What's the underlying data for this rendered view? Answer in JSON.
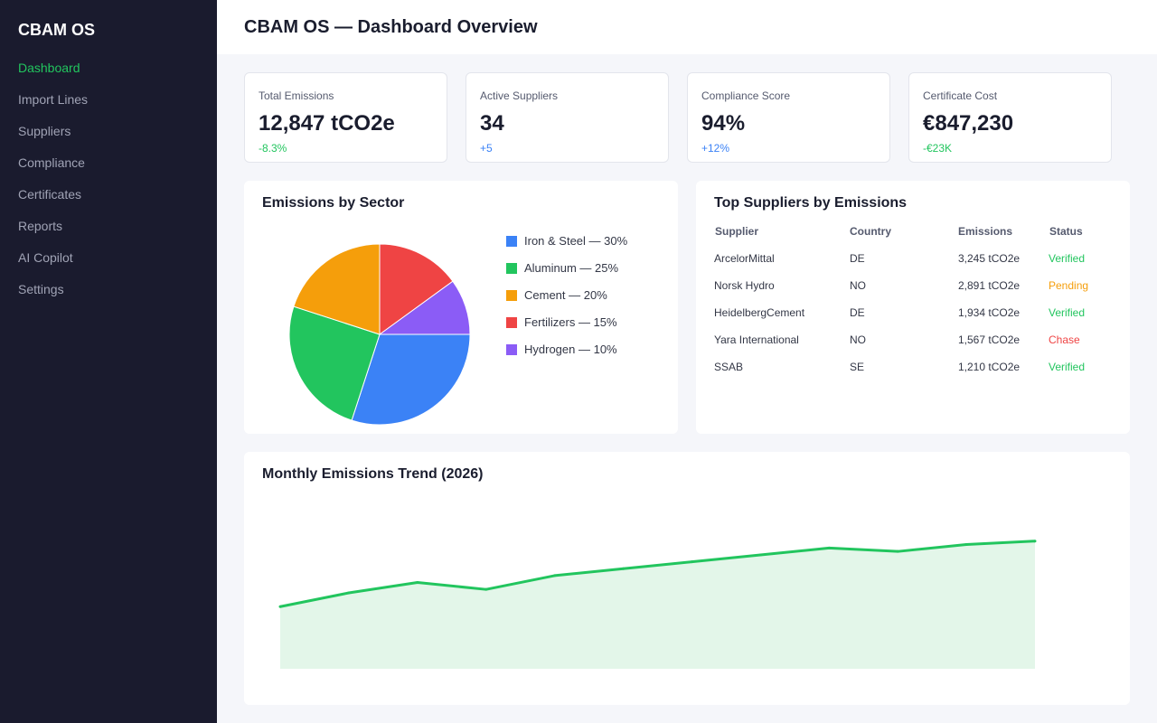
{
  "app": {
    "brand": "CBAM OS",
    "page_title": "CBAM OS — Dashboard Overview"
  },
  "sidebar": {
    "items": [
      {
        "label": "Dashboard",
        "active": true
      },
      {
        "label": "Import Lines",
        "active": false
      },
      {
        "label": "Suppliers",
        "active": false
      },
      {
        "label": "Compliance",
        "active": false
      },
      {
        "label": "Certificates",
        "active": false
      },
      {
        "label": "Reports",
        "active": false
      },
      {
        "label": "AI Copilot",
        "active": false
      },
      {
        "label": "Settings",
        "active": false
      }
    ]
  },
  "kpis": [
    {
      "label": "Total Emissions",
      "value": "12,847 tCO2e",
      "delta": "-8.3%",
      "delta_color": "#22c55e"
    },
    {
      "label": "Active Suppliers",
      "value": "34",
      "delta": "+5",
      "delta_color": "#3b82f6"
    },
    {
      "label": "Compliance Score",
      "value": "94%",
      "delta": "+12%",
      "delta_color": "#3b82f6"
    },
    {
      "label": "Certificate Cost",
      "value": "€847,230",
      "delta": "-€23K",
      "delta_color": "#22c55e"
    }
  ],
  "sector_card": {
    "title": "Emissions by Sector"
  },
  "suppliers_card": {
    "title": "Top Suppliers by Emissions",
    "columns": [
      "Supplier",
      "Country",
      "Emissions",
      "Status"
    ],
    "rows": [
      {
        "supplier": "ArcelorMittal",
        "country": "DE",
        "emissions": "3,245 tCO2e",
        "status": "Verified",
        "status_color": "#22c55e"
      },
      {
        "supplier": "Norsk Hydro",
        "country": "NO",
        "emissions": "2,891 tCO2e",
        "status": "Pending",
        "status_color": "#f59e0b"
      },
      {
        "supplier": "HeidelbergCement",
        "country": "DE",
        "emissions": "1,934 tCO2e",
        "status": "Verified",
        "status_color": "#22c55e"
      },
      {
        "supplier": "Yara International",
        "country": "NO",
        "emissions": "1,567 tCO2e",
        "status": "Chase",
        "status_color": "#ef4444"
      },
      {
        "supplier": "SSAB",
        "country": "SE",
        "emissions": "1,210 tCO2e",
        "status": "Verified",
        "status_color": "#22c55e"
      }
    ]
  },
  "trend_card": {
    "title": "Monthly Emissions Trend (2026)"
  },
  "chart_data": [
    {
      "type": "pie",
      "title": "Emissions by Sector",
      "categories": [
        "Iron & Steel",
        "Aluminum",
        "Cement",
        "Fertilizers",
        "Hydrogen"
      ],
      "values": [
        30,
        25,
        20,
        15,
        10
      ],
      "legend_labels": [
        "Iron & Steel — 30%",
        "Aluminum — 25%",
        "Cement — 20%",
        "Fertilizers — 15%",
        "Hydrogen — 10%"
      ],
      "colors": [
        "#3b82f6",
        "#22c55e",
        "#f59e0b",
        "#ef4444",
        "#8b5cf6"
      ],
      "legend": "right"
    },
    {
      "type": "area",
      "title": "Monthly Emissions Trend (2026)",
      "values": [
        18,
        22,
        25,
        23,
        27,
        29,
        31,
        33,
        35,
        34,
        36,
        37
      ],
      "ylim": [
        0,
        55
      ],
      "color": "#22c55e",
      "fill_color": "#e3f6e9",
      "grid": false
    }
  ]
}
